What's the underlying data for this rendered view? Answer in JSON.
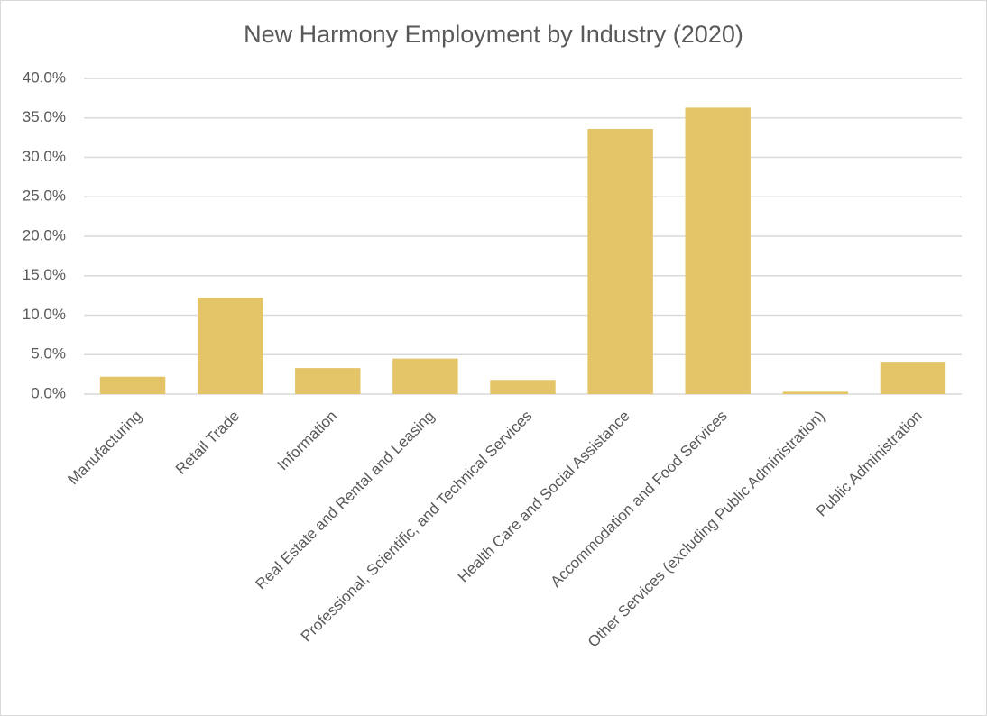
{
  "chart_data": {
    "type": "bar",
    "title": "New Harmony Employment by Industry (2020)",
    "categories": [
      "Manufacturing",
      "Retail Trade",
      "Information",
      "Real Estate and Rental and Leasing",
      "Professional, Scientific, and Technical Services",
      "Health Care and Social Assistance",
      "Accommodation and Food Services",
      "Other Services (excluding Public Administration)",
      "Public Administration"
    ],
    "values": [
      2.2,
      12.2,
      3.3,
      4.5,
      1.8,
      33.6,
      36.3,
      0.3,
      4.1
    ],
    "color": "#e3c567",
    "ylim": [
      0,
      40
    ],
    "yticks": [
      {
        "value": 0,
        "label": "0.0%"
      },
      {
        "value": 5,
        "label": "5.0%"
      },
      {
        "value": 10,
        "label": "10.0%"
      },
      {
        "value": 15,
        "label": "15.0%"
      },
      {
        "value": 20,
        "label": "20.0%"
      },
      {
        "value": 25,
        "label": "25.0%"
      },
      {
        "value": 30,
        "label": "30.0%"
      },
      {
        "value": 35,
        "label": "35.0%"
      },
      {
        "value": 40,
        "label": "40.0%"
      }
    ],
    "grid": true
  }
}
